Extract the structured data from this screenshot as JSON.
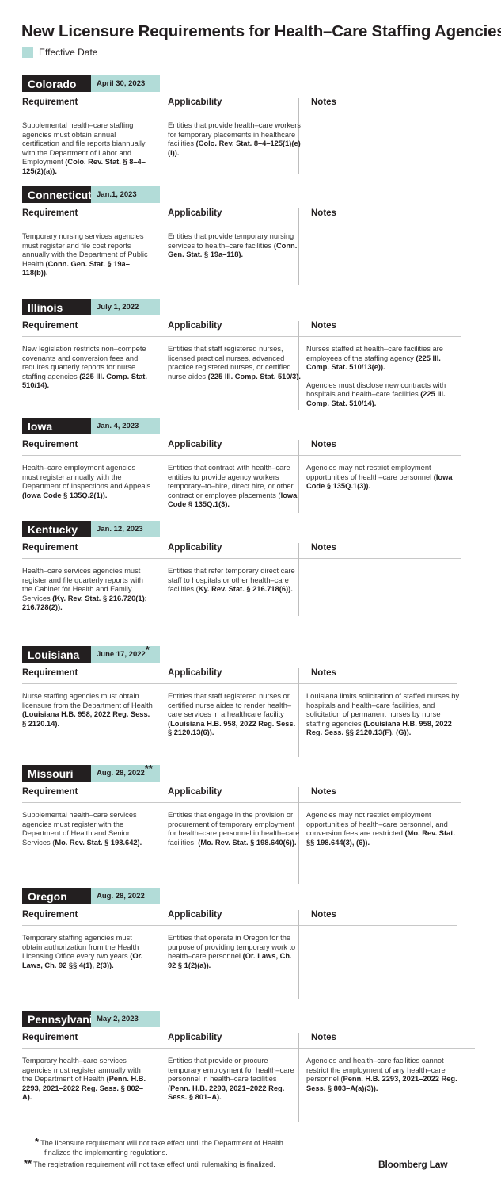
{
  "title": "New Licensure Requirements for Health–Care Staffing Agencies",
  "legend": {
    "label": "Effective Date",
    "color": "#b2dcd8"
  },
  "columns": {
    "requirement": "Requirement",
    "applicability": "Applicability",
    "notes": "Notes"
  },
  "states": [
    {
      "name": "Colorado",
      "date": "April 30, 2023",
      "mark": "",
      "requirement": [
        {
          "t": "Supplemental health–care staffing agencies must obtain annual certification and file reports biannually with the Department of Labor and Employment "
        },
        {
          "t": "(Colo. Rev. Stat. § 8–4–125(2)(a)).",
          "b": true
        }
      ],
      "applicability": [
        {
          "t": "Entities that provide health–care workers for temporary placements in healthcare facilities "
        },
        {
          "t": "(Colo. Rev. Stat. 8–4–125(1)(e)(I)).",
          "b": true
        }
      ],
      "notes": []
    },
    {
      "name": "Connecticut",
      "date": "Jan.1, 2023",
      "mark": "",
      "requirement": [
        {
          "t": "Temporary nursing services agencies must register and file cost reports annually with the Department of Public Health "
        },
        {
          "t": "(Conn. Gen. Stat. § 19a–118(b)).",
          "b": true
        }
      ],
      "applicability": [
        {
          "t": "Entities that provide temporary nursing services to health–care facilities "
        },
        {
          "t": "(Conn. Gen. Stat. § 19a–118).",
          "b": true
        }
      ],
      "notes": []
    },
    {
      "name": "Illinois",
      "date": "July 1, 2022",
      "mark": "",
      "requirement": [
        {
          "t": "New legislation restricts non–compete covenants and conversion fees and requires quarterly reports for nurse staffing agencies "
        },
        {
          "t": "(225 Ill. Comp. Stat. 510/14).",
          "b": true
        }
      ],
      "applicability": [
        {
          "t": "Entities that staff registered nurses, licensed practical nurses, advanced practice registered nurses, or certified nurse aides "
        },
        {
          "t": "(225 Ill. Comp. Stat. 510/3).",
          "b": true
        }
      ],
      "notes": [
        {
          "t": "Nurses staffed at health–care facilities are employees of the staffing agency "
        },
        {
          "t": "(225 Ill. Comp. Stat. 510/13(e)).",
          "b": true
        },
        {
          "br": true
        },
        {
          "t": "Agencies must disclose new contracts with hospitals and health–care facilities "
        },
        {
          "t": "(225 Ill. Comp. Stat. 510/14).",
          "b": true
        }
      ]
    },
    {
      "name": "Iowa",
      "date": "Jan. 4, 2023",
      "mark": "",
      "requirement": [
        {
          "t": "Health–care employment agencies must register annually with the Department of Inspections and Appeals "
        },
        {
          "t": "(Iowa Code § 135Q.2(1)).",
          "b": true
        }
      ],
      "applicability": [
        {
          "t": "Entities that contract with health–care entities to provide agency workers temporary–to–hire, direct hire, or other contract or employee placements ("
        },
        {
          "t": "Iowa Code § 135Q.1(3).",
          "b": true
        }
      ],
      "notes": [
        {
          "t": "Agencies may not restrict employment opportunities of health–care personnel "
        },
        {
          "t": "(Iowa Code § 135Q.1(3)).",
          "b": true
        }
      ]
    },
    {
      "name": "Kentucky",
      "date": "Jan. 12, 2023",
      "mark": "",
      "requirement": [
        {
          "t": "Health–care services agencies must register and file quarterly reports with the Cabinet for Health and Family Services "
        },
        {
          "t": "(Ky. Rev. Stat. § 216.720(1); 216.728(2)).",
          "b": true
        }
      ],
      "applicability": [
        {
          "t": "Entities that refer temporary direct care staff to hospitals or other health–care facilities ("
        },
        {
          "t": "Ky. Rev. Stat. § 216.718(6)).",
          "b": true
        }
      ],
      "notes": []
    },
    {
      "name": "Louisiana",
      "date": "June 17, 2022",
      "mark": "*",
      "requirement": [
        {
          "t": "Nurse staffing agencies must obtain licensure from the Department of Health "
        },
        {
          "t": "(Louisiana H.B. 958, 2022 Reg. Sess. § 2120.14).",
          "b": true
        }
      ],
      "applicability": [
        {
          "t": "Entities that staff registered nurses or certified nurse aides to render health–care services in a healthcare facility "
        },
        {
          "t": "(Louisiana H.B. 958, 2022 Reg. Sess. § 2120.13(6)).",
          "b": true
        }
      ],
      "notes": [
        {
          "t": "Louisiana limits solicitation of staffed nurses by hospitals and health–care facilities, and solicitation of permanent nurses by nurse staffing agencies "
        },
        {
          "t": "(Louisiana H.B. 958, 2022 Reg. Sess. §§ 2120.13(F), (G)).",
          "b": true
        }
      ]
    },
    {
      "name": "Missouri",
      "date": "Aug. 28, 2022",
      "mark": "**",
      "requirement": [
        {
          "t": "Supplemental health–care services agencies must register with the Department of Health and Senior Services ("
        },
        {
          "t": "Mo. Rev. Stat. § 198.642).",
          "b": true
        }
      ],
      "applicability": [
        {
          "t": "Entities that engage in the provision or procurement of temporary employment for health–care personnel in health–care facilities; "
        },
        {
          "t": "(Mo. Rev. Stat. § 198.640(6)).",
          "b": true
        }
      ],
      "notes": [
        {
          "t": "Agencies may not restrict employment opportunities of health–care personnel, and conversion fees are restricted "
        },
        {
          "t": "(Mo. Rev. Stat. §§ 198.644(3), (6)).",
          "b": true
        }
      ]
    },
    {
      "name": "Oregon",
      "date": "Aug. 28, 2022",
      "mark": "",
      "requirement": [
        {
          "t": "Temporary staffing agencies must obtain authorization from the Health Licensing Office every two years "
        },
        {
          "t": "(Or. Laws, Ch. 92 §§ 4(1), 2(3)).",
          "b": true
        }
      ],
      "applicability": [
        {
          "t": "Entities that operate in Oregon for the purpose of providing temporary work to health–care personnel "
        },
        {
          "t": "(Or. Laws, Ch. 92 § 1(2)(a)).",
          "b": true
        }
      ],
      "notes": []
    },
    {
      "name": "Pennsylvania",
      "date": "May 2, 2023",
      "mark": "",
      "requirement": [
        {
          "t": "Temporary health–care services agencies must register annually with the Department of Health "
        },
        {
          "t": "(Penn. H.B. 2293, 2021–2022 Reg. Sess. § 802–A).",
          "b": true
        }
      ],
      "applicability": [
        {
          "t": "Entities that provide or procure temporary employment for health–care personnel in health–care facilities ("
        },
        {
          "t": "Penn. H.B. 2293, 2021–2022 Reg. Sess. § 801–A).",
          "b": true
        }
      ],
      "notes": [
        {
          "t": "Agencies and health–care facilities cannot restrict the employment of any health–care personnel ("
        },
        {
          "t": "Penn. H.B. 2293, 2021–2022 Reg. Sess. § 803–A(a)(3)).",
          "b": true
        }
      ]
    }
  ],
  "footnotes": [
    {
      "mark": "*",
      "text": "The licensure requirement will not take effect until the Department of Health finalizes the implementing regulations."
    },
    {
      "mark": "**",
      "text": "The registration requirement will not take effect until rulemaking is finalized."
    }
  ],
  "brand": "Bloomberg Law"
}
